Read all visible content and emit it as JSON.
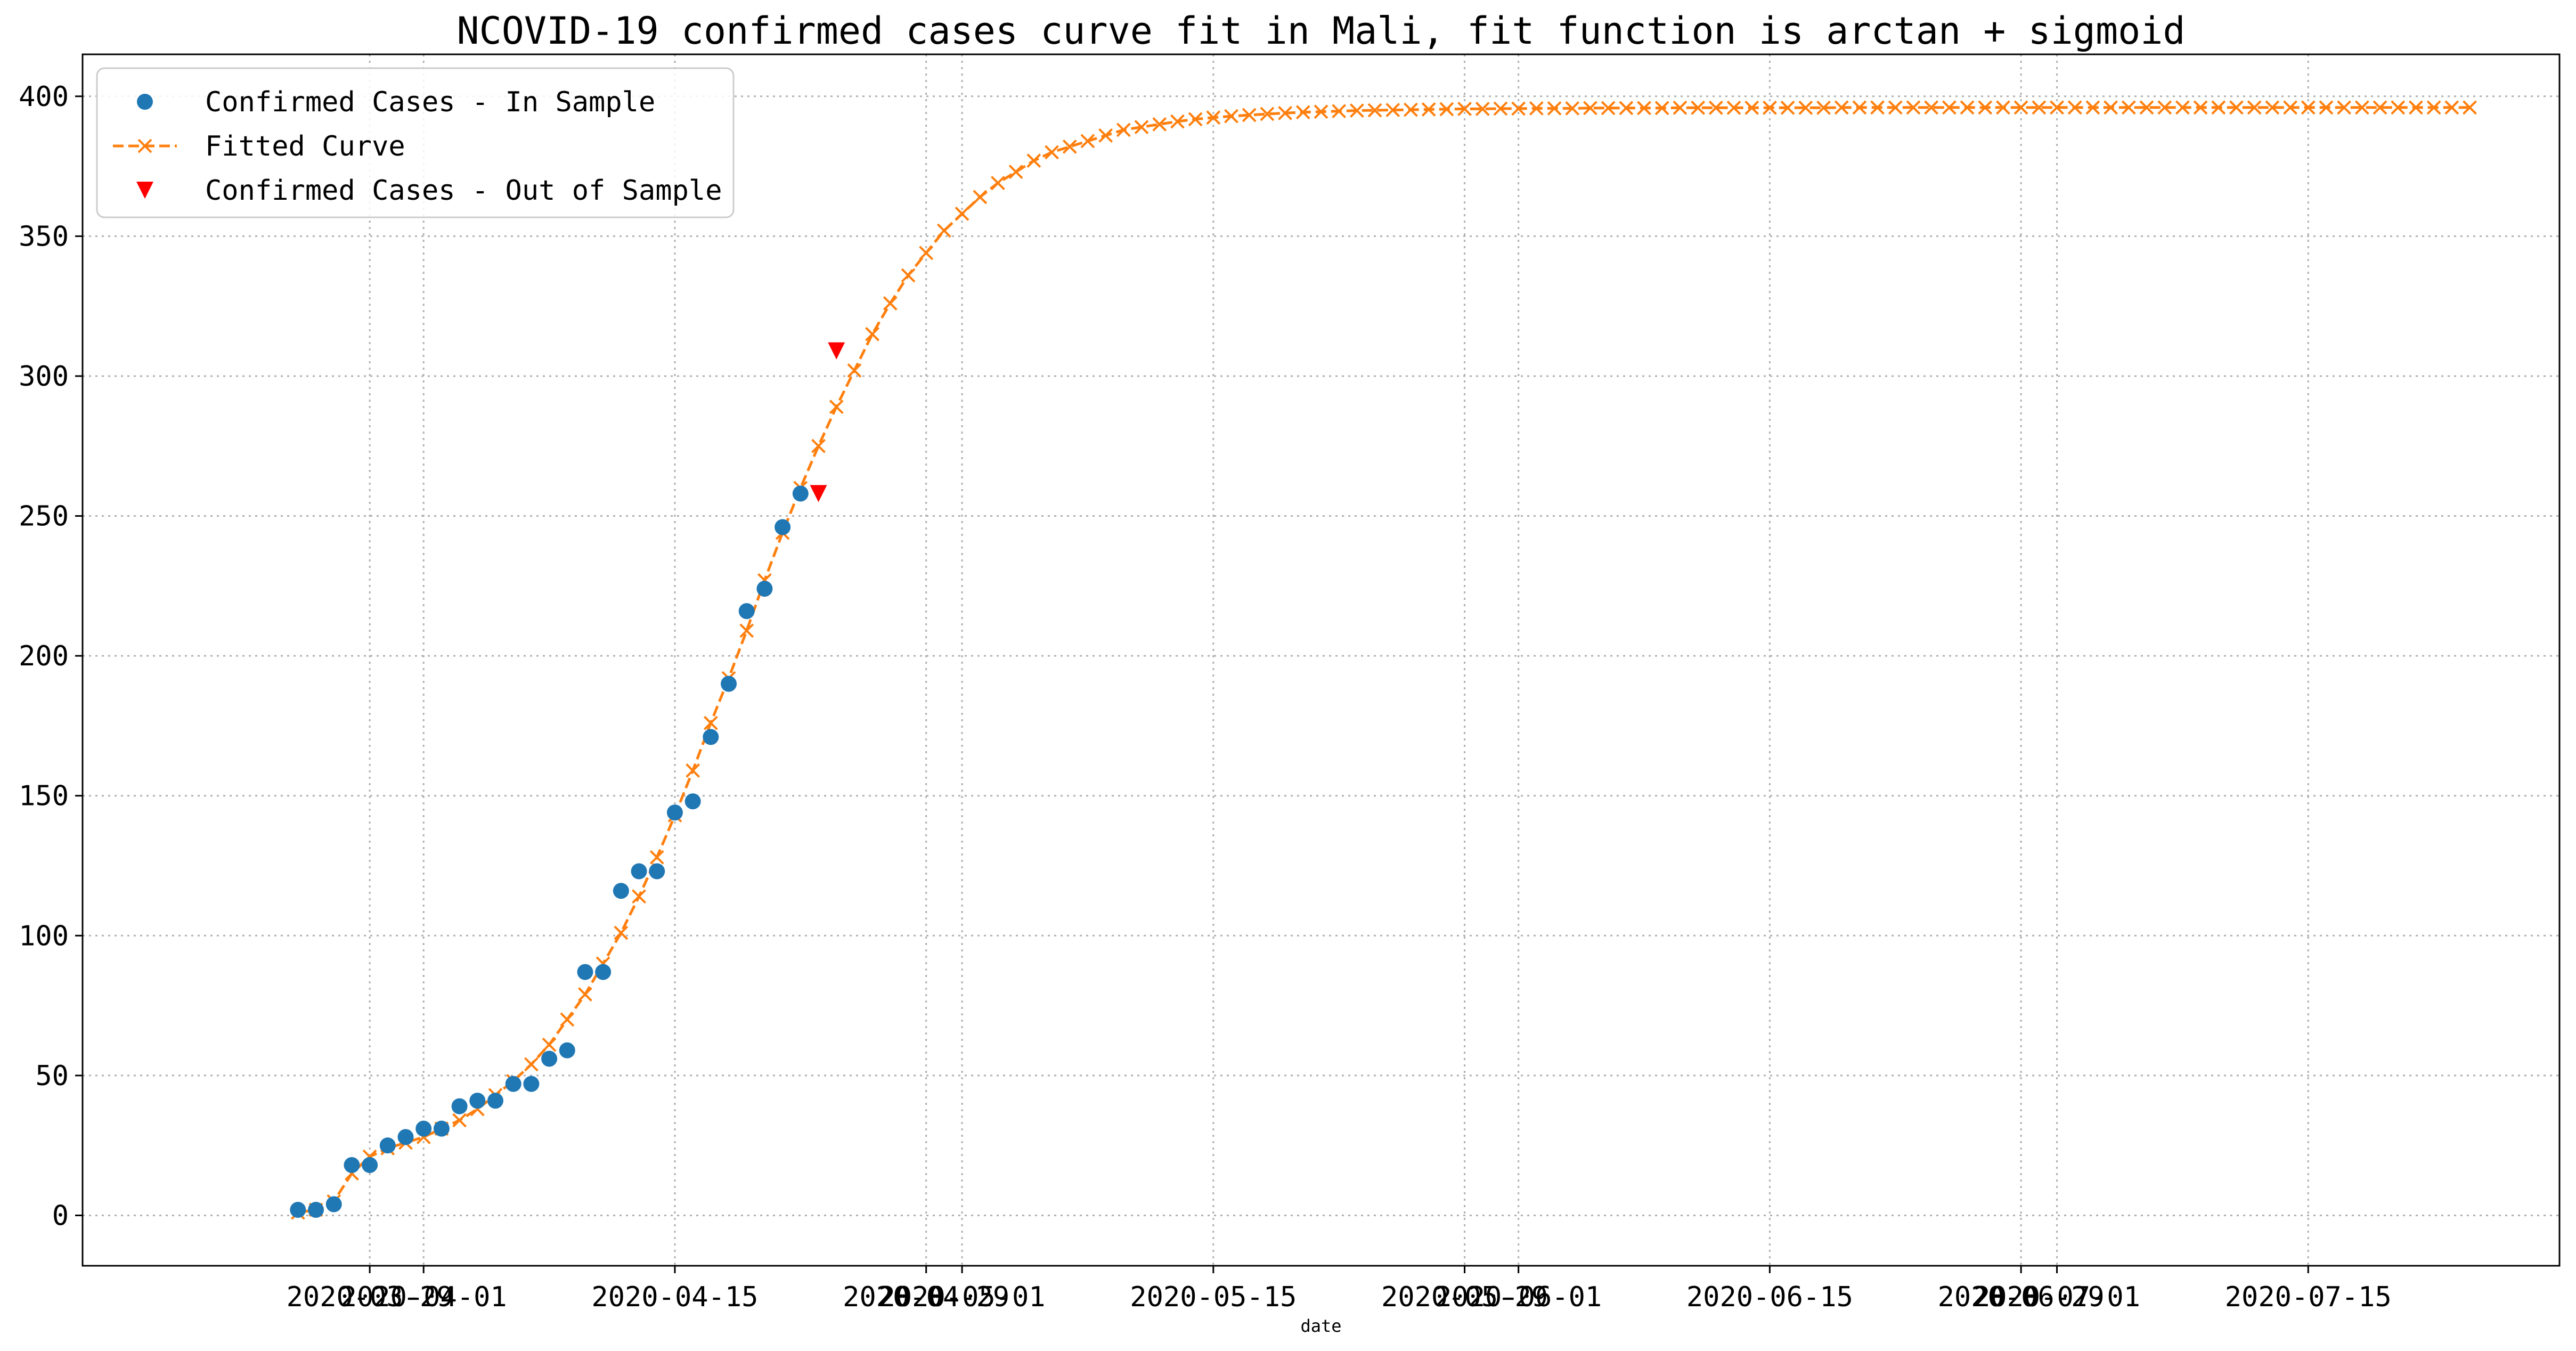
{
  "chart_data": {
    "type": "line",
    "title": "NCOVID-19 confirmed cases curve fit in Mali, fit function is arctan + sigmoid",
    "xlabel": "date",
    "ylabel": "",
    "x_type": "date",
    "xlim": [
      "2020-03-13",
      "2020-07-29"
    ],
    "ylim": [
      -18,
      415
    ],
    "yticks": [
      0,
      50,
      100,
      150,
      200,
      250,
      300,
      350,
      400
    ],
    "xticks": [
      {
        "date": "2020-03-29",
        "label": "2020-03-29"
      },
      {
        "date": "2020-04-01",
        "label": "2020-04-01"
      },
      {
        "date": "2020-04-15",
        "label": "2020-04-15"
      },
      {
        "date": "2020-04-29",
        "label": "2020-04-29"
      },
      {
        "date": "2020-05-01",
        "label": "2020-05-01"
      },
      {
        "date": "2020-05-15",
        "label": "2020-05-15"
      },
      {
        "date": "2020-05-29",
        "label": "2020-05-29"
      },
      {
        "date": "2020-06-01",
        "label": "2020-06-01"
      },
      {
        "date": "2020-06-15",
        "label": "2020-06-15"
      },
      {
        "date": "2020-06-29",
        "label": "2020-06-29"
      },
      {
        "date": "2020-07-01",
        "label": "2020-07-01"
      },
      {
        "date": "2020-07-15",
        "label": "2020-07-15"
      }
    ],
    "grid": true,
    "legend_position": "top-left",
    "colors": {
      "in_sample": "#1f77b4",
      "fitted": "#ff7f0e",
      "out_sample": "#ff0000"
    },
    "series": [
      {
        "name": "Confirmed Cases - In Sample",
        "style": "marker-circle",
        "points": [
          [
            "2020-03-25",
            2
          ],
          [
            "2020-03-26",
            2
          ],
          [
            "2020-03-27",
            4
          ],
          [
            "2020-03-28",
            18
          ],
          [
            "2020-03-29",
            18
          ],
          [
            "2020-03-30",
            25
          ],
          [
            "2020-03-31",
            28
          ],
          [
            "2020-04-01",
            31
          ],
          [
            "2020-04-02",
            31
          ],
          [
            "2020-04-03",
            39
          ],
          [
            "2020-04-04",
            41
          ],
          [
            "2020-04-05",
            41
          ],
          [
            "2020-04-06",
            47
          ],
          [
            "2020-04-07",
            47
          ],
          [
            "2020-04-08",
            56
          ],
          [
            "2020-04-09",
            59
          ],
          [
            "2020-04-10",
            87
          ],
          [
            "2020-04-11",
            87
          ],
          [
            "2020-04-12",
            116
          ],
          [
            "2020-04-13",
            123
          ],
          [
            "2020-04-14",
            123
          ],
          [
            "2020-04-15",
            144
          ],
          [
            "2020-04-16",
            148
          ],
          [
            "2020-04-17",
            171
          ],
          [
            "2020-04-18",
            190
          ],
          [
            "2020-04-19",
            216
          ],
          [
            "2020-04-20",
            224
          ],
          [
            "2020-04-21",
            246
          ],
          [
            "2020-04-22",
            258
          ]
        ]
      },
      {
        "name": "Fitted Curve",
        "style": "dashed-line-x-markers",
        "points": [
          [
            "2020-03-25",
            1
          ],
          [
            "2020-03-26",
            2
          ],
          [
            "2020-03-27",
            5
          ],
          [
            "2020-03-28",
            15
          ],
          [
            "2020-03-29",
            21
          ],
          [
            "2020-03-30",
            24
          ],
          [
            "2020-03-31",
            26
          ],
          [
            "2020-04-01",
            28
          ],
          [
            "2020-04-02",
            31
          ],
          [
            "2020-04-03",
            34
          ],
          [
            "2020-04-04",
            38
          ],
          [
            "2020-04-05",
            43
          ],
          [
            "2020-04-06",
            48
          ],
          [
            "2020-04-07",
            54
          ],
          [
            "2020-04-08",
            61
          ],
          [
            "2020-04-09",
            70
          ],
          [
            "2020-04-10",
            79
          ],
          [
            "2020-04-11",
            90
          ],
          [
            "2020-04-12",
            101
          ],
          [
            "2020-04-13",
            114
          ],
          [
            "2020-04-14",
            128
          ],
          [
            "2020-04-15",
            143
          ],
          [
            "2020-04-16",
            159
          ],
          [
            "2020-04-17",
            176
          ],
          [
            "2020-04-18",
            192
          ],
          [
            "2020-04-19",
            209
          ],
          [
            "2020-04-20",
            227
          ],
          [
            "2020-04-21",
            244
          ],
          [
            "2020-04-22",
            260
          ],
          [
            "2020-04-23",
            275
          ],
          [
            "2020-04-24",
            289
          ],
          [
            "2020-04-25",
            302
          ],
          [
            "2020-04-26",
            315
          ],
          [
            "2020-04-27",
            326
          ],
          [
            "2020-04-28",
            336
          ],
          [
            "2020-04-29",
            344
          ],
          [
            "2020-04-30",
            352
          ],
          [
            "2020-05-01",
            358
          ],
          [
            "2020-05-02",
            364
          ],
          [
            "2020-05-03",
            369
          ],
          [
            "2020-05-04",
            373
          ],
          [
            "2020-05-05",
            377
          ],
          [
            "2020-05-06",
            380
          ],
          [
            "2020-05-07",
            382
          ],
          [
            "2020-05-08",
            384
          ],
          [
            "2020-05-09",
            386
          ],
          [
            "2020-05-10",
            388
          ],
          [
            "2020-05-11",
            389
          ],
          [
            "2020-05-12",
            390
          ],
          [
            "2020-05-13",
            391
          ],
          [
            "2020-05-14",
            391.8
          ],
          [
            "2020-05-15",
            392.4
          ],
          [
            "2020-05-16",
            392.9
          ],
          [
            "2020-05-17",
            393.3
          ],
          [
            "2020-05-18",
            393.7
          ],
          [
            "2020-05-19",
            394
          ],
          [
            "2020-05-20",
            394.3
          ],
          [
            "2020-05-21",
            394.5
          ],
          [
            "2020-05-22",
            394.7
          ],
          [
            "2020-05-23",
            394.9
          ],
          [
            "2020-05-24",
            395
          ],
          [
            "2020-05-25",
            395.1
          ],
          [
            "2020-05-26",
            395.2
          ],
          [
            "2020-05-27",
            395.3
          ],
          [
            "2020-05-28",
            395.4
          ],
          [
            "2020-05-29",
            395.5
          ],
          [
            "2020-05-30",
            395.5
          ],
          [
            "2020-05-31",
            395.6
          ],
          [
            "2020-06-01",
            395.6
          ],
          [
            "2020-06-02",
            395.7
          ],
          [
            "2020-06-03",
            395.7
          ],
          [
            "2020-06-04",
            395.7
          ],
          [
            "2020-06-05",
            395.8
          ],
          [
            "2020-06-06",
            395.8
          ],
          [
            "2020-06-07",
            395.8
          ],
          [
            "2020-06-08",
            395.8
          ],
          [
            "2020-06-09",
            395.8
          ],
          [
            "2020-06-10",
            395.9
          ],
          [
            "2020-06-11",
            395.9
          ],
          [
            "2020-06-12",
            395.9
          ],
          [
            "2020-06-13",
            395.9
          ],
          [
            "2020-06-14",
            395.9
          ],
          [
            "2020-06-15",
            395.9
          ],
          [
            "2020-06-16",
            395.9
          ],
          [
            "2020-06-17",
            395.9
          ],
          [
            "2020-06-18",
            395.9
          ],
          [
            "2020-06-19",
            396
          ],
          [
            "2020-06-20",
            396
          ],
          [
            "2020-06-21",
            396
          ],
          [
            "2020-06-22",
            396
          ],
          [
            "2020-06-23",
            396
          ],
          [
            "2020-06-24",
            396
          ],
          [
            "2020-06-25",
            396
          ],
          [
            "2020-06-26",
            396
          ],
          [
            "2020-06-27",
            396
          ],
          [
            "2020-06-28",
            396
          ],
          [
            "2020-06-29",
            396
          ],
          [
            "2020-06-30",
            396
          ],
          [
            "2020-07-01",
            396
          ],
          [
            "2020-07-02",
            396
          ],
          [
            "2020-07-03",
            396
          ],
          [
            "2020-07-04",
            396
          ],
          [
            "2020-07-05",
            396
          ],
          [
            "2020-07-06",
            396
          ],
          [
            "2020-07-07",
            396
          ],
          [
            "2020-07-08",
            396
          ],
          [
            "2020-07-09",
            396
          ],
          [
            "2020-07-10",
            396
          ],
          [
            "2020-07-11",
            396
          ],
          [
            "2020-07-12",
            396
          ],
          [
            "2020-07-13",
            396
          ],
          [
            "2020-07-14",
            396
          ],
          [
            "2020-07-15",
            396
          ],
          [
            "2020-07-16",
            396
          ],
          [
            "2020-07-17",
            396
          ],
          [
            "2020-07-18",
            396
          ],
          [
            "2020-07-19",
            396
          ],
          [
            "2020-07-20",
            396
          ],
          [
            "2020-07-21",
            396
          ],
          [
            "2020-07-22",
            396
          ],
          [
            "2020-07-23",
            396
          ],
          [
            "2020-07-24",
            396
          ]
        ]
      },
      {
        "name": "Confirmed Cases - Out of Sample",
        "style": "marker-triangle-down",
        "points": [
          [
            "2020-04-23",
            258
          ],
          [
            "2020-04-24",
            309
          ]
        ]
      }
    ]
  }
}
